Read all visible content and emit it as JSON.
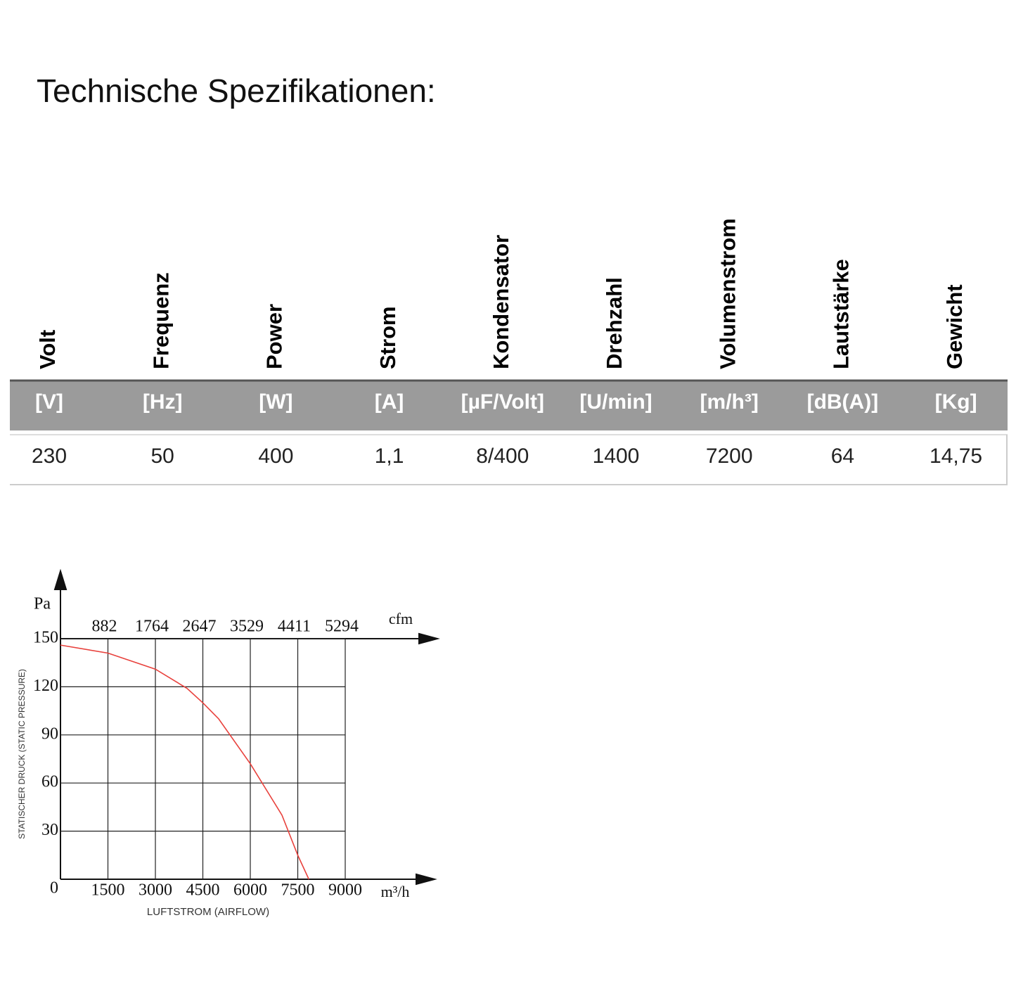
{
  "title": "Technische Spezifikationen:",
  "table": {
    "headers": [
      "Volt",
      "Frequenz",
      "Power",
      "Strom",
      "Kondensator",
      "Drehzahl",
      "Volumenstrom",
      "Lautstärke",
      "Gewicht"
    ],
    "units": [
      "[V]",
      "[Hz]",
      "[W]",
      "[A]",
      "[µF/Volt]",
      "[U/min]",
      "[m/h³]",
      "[dB(A)]",
      "[Kg]"
    ],
    "values": [
      "230",
      "50",
      "400",
      "1,1",
      "8/400",
      "1400",
      "7200",
      "64",
      "14,75"
    ]
  },
  "chart_data": {
    "type": "line",
    "y_unit": "Pa",
    "x_unit": "m³/h",
    "x2_unit": "cfm",
    "y_label": "STATISCHER DRUCK (STATIC PRESSURE)",
    "x_label": "LUFTSTROM (AIRFLOW)",
    "x": [
      0,
      1500,
      3000,
      4000,
      4500,
      5000,
      6000,
      7000,
      7500,
      7850
    ],
    "series": [
      {
        "color": "#e8413c",
        "values": [
          146,
          141,
          131,
          119,
          110,
          100,
          72,
          40,
          15,
          0
        ]
      }
    ],
    "xlim": [
      0,
      9000
    ],
    "xticks": [
      1500,
      3000,
      4500,
      6000,
      7500,
      9000
    ],
    "ylim": [
      0,
      150
    ],
    "yticks": [
      0,
      30,
      60,
      90,
      120,
      150
    ],
    "x2lim": [
      0,
      5294
    ],
    "x2ticks": [
      882,
      1764,
      2647,
      3529,
      4411,
      5294
    ],
    "grid": true
  }
}
